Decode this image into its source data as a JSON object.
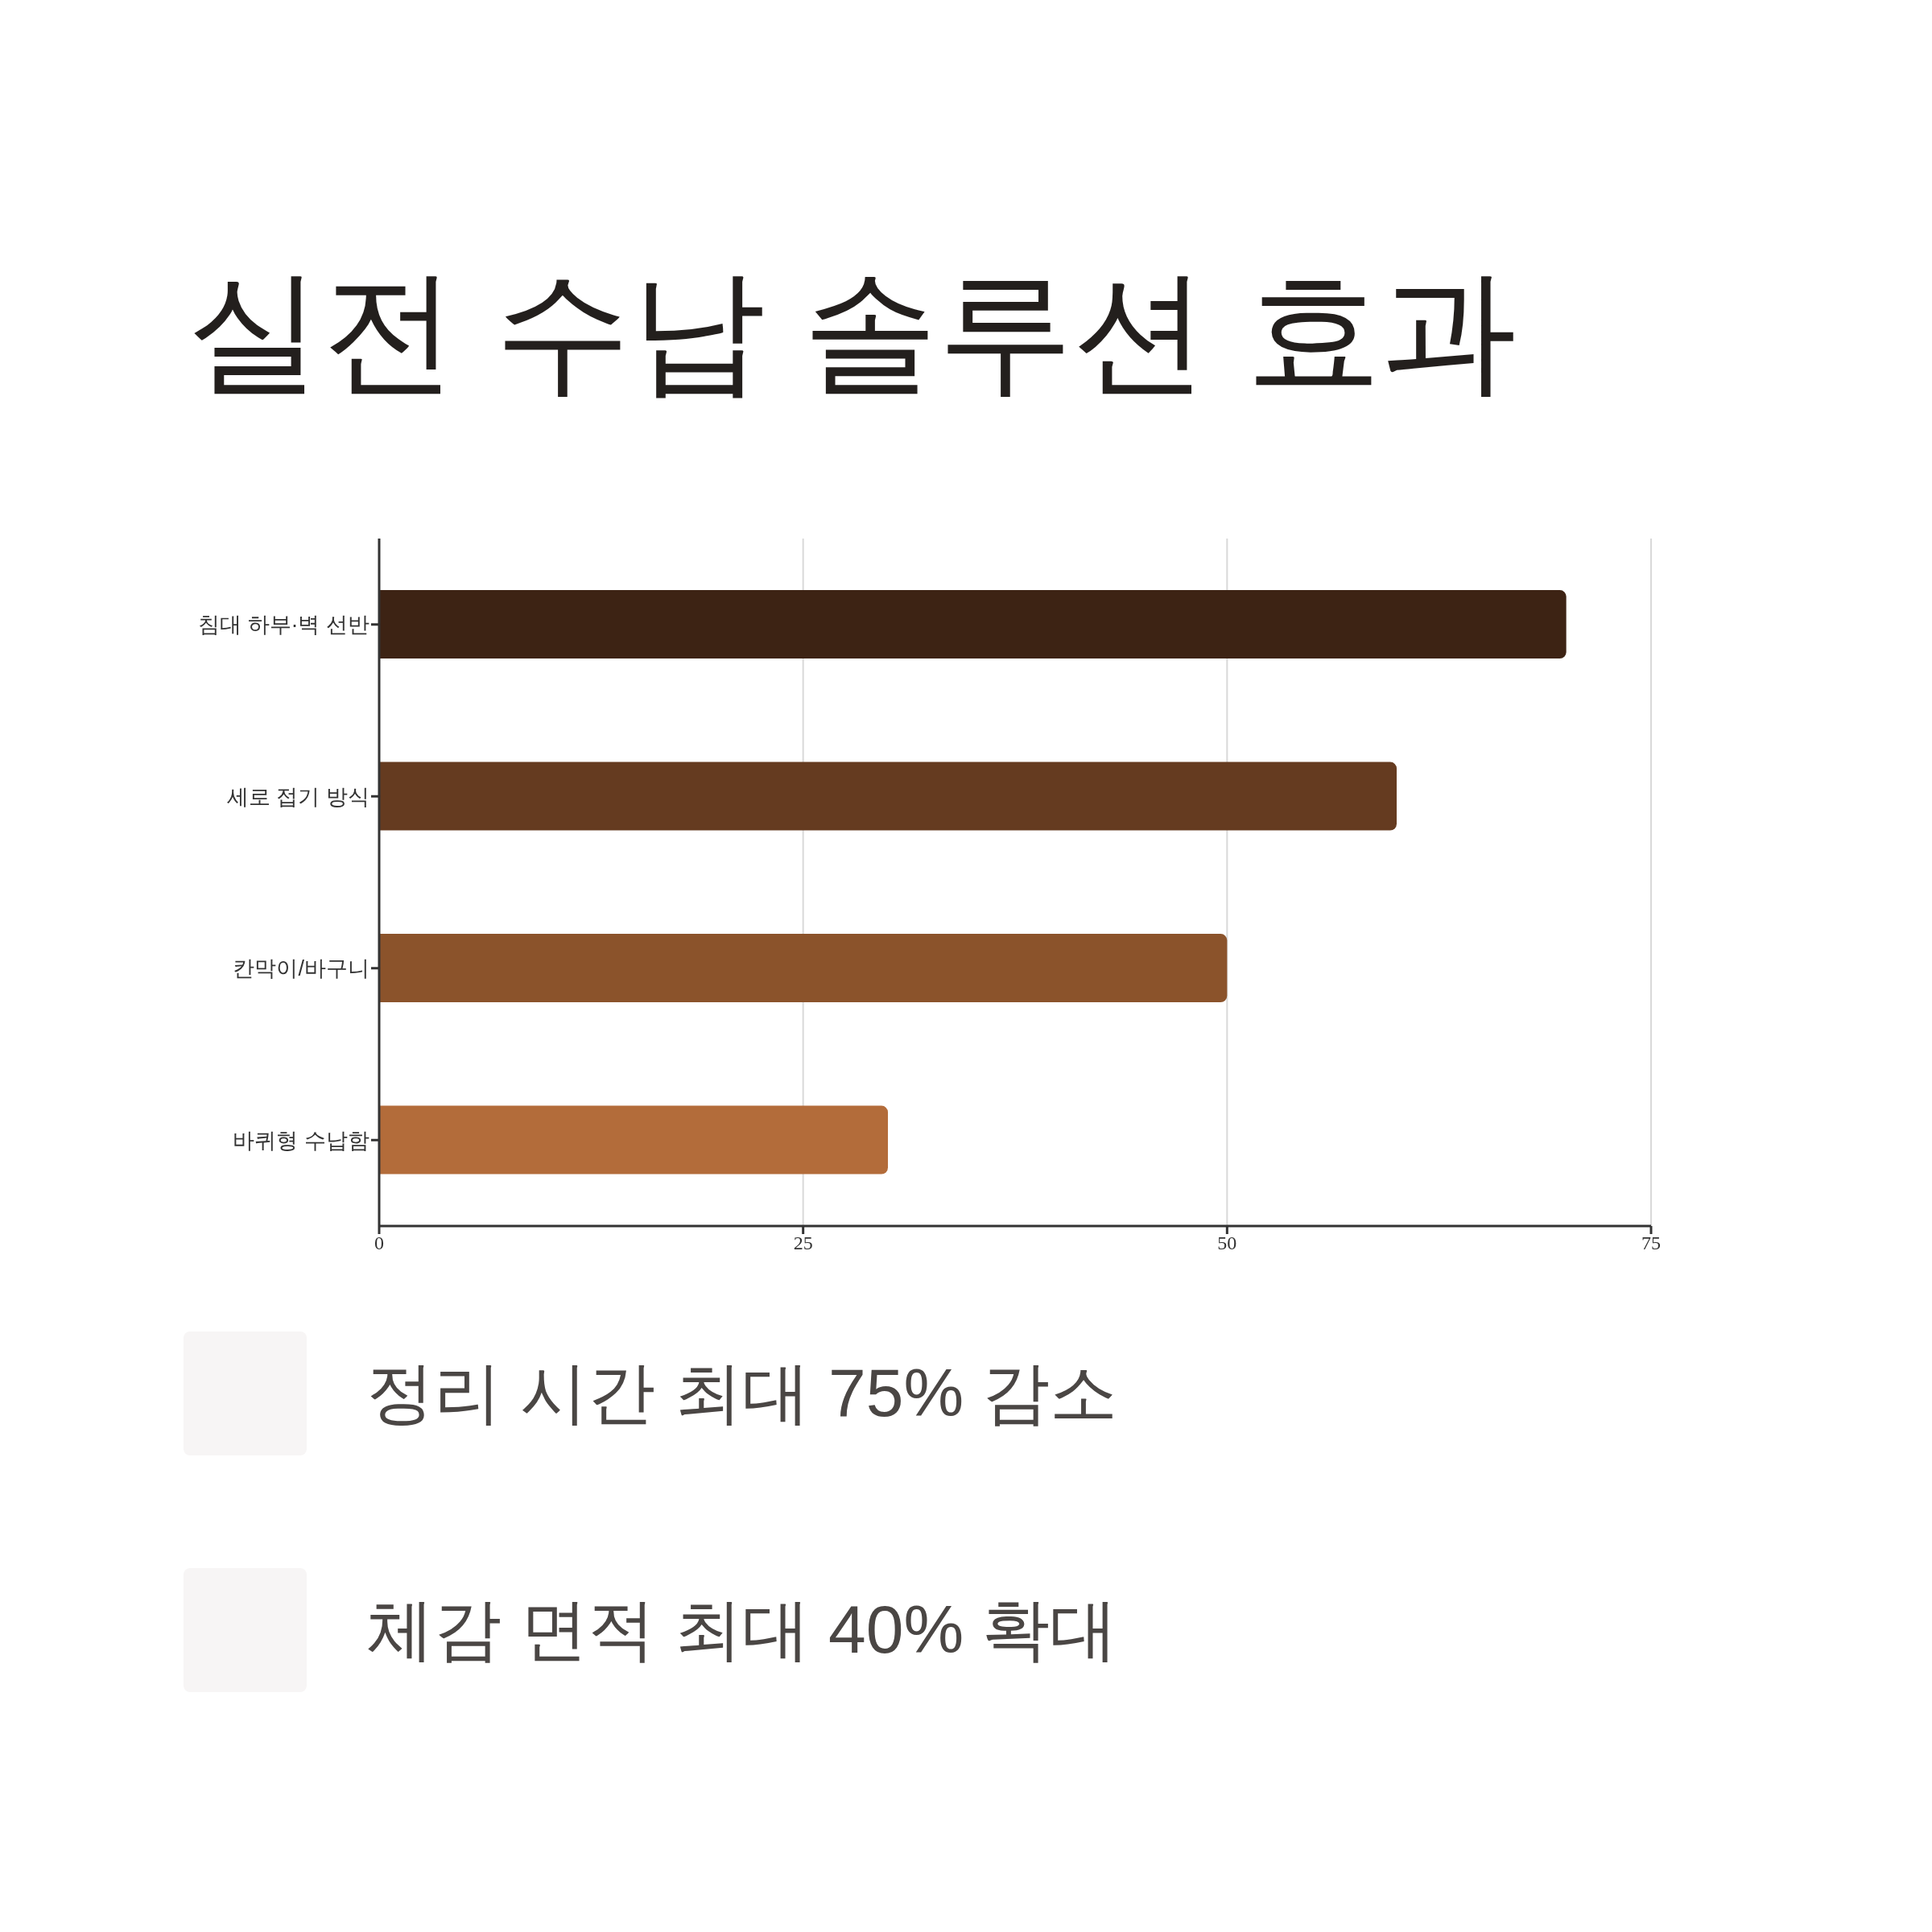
{
  "chart_data": {
    "type": "bar",
    "title": "실전 수납 솔루션 효과",
    "orientation": "horizontal",
    "categories": [
      "침대 하부·벽 선반",
      "세로 접기 방식",
      "칸막이/바구니",
      "바퀴형 수납함"
    ],
    "values": [
      70,
      60,
      50,
      30
    ],
    "colors": [
      "#3d2314",
      "#653b20",
      "#8b532b",
      "#b36c3a"
    ],
    "xlim": [
      0,
      75
    ],
    "xticks": [
      0,
      25,
      50,
      75
    ],
    "grid": "x",
    "annotations": [
      "정리 시간 최대 75% 감소",
      "체감 면적 최대 40% 확대"
    ]
  }
}
